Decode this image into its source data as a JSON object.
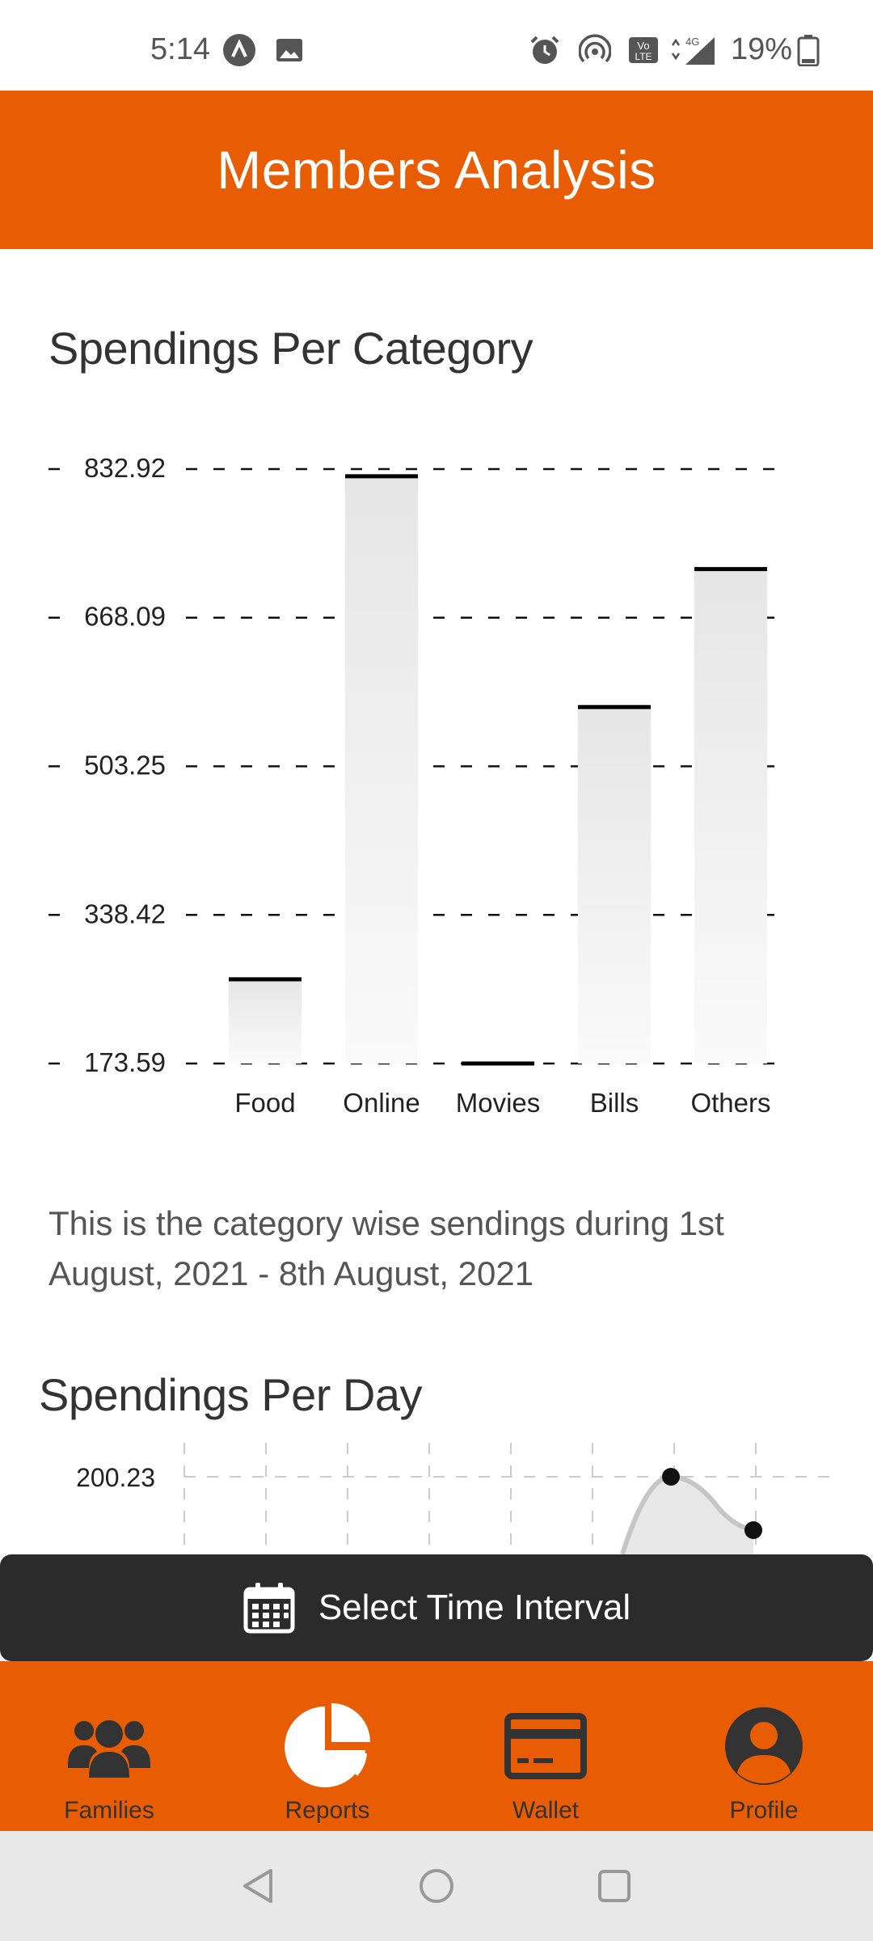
{
  "status_bar": {
    "time": "5:14",
    "battery": "19%",
    "icons": [
      "app-a-icon",
      "image-icon",
      "alarm-icon",
      "hotspot-icon",
      "volte-icon",
      "signal-4g-icon",
      "battery-icon"
    ]
  },
  "header": {
    "title": "Members Analysis"
  },
  "category_section": {
    "title": "Spendings Per Category",
    "caption": "This is the category wise sendings during 1st August, 2021 - 8th August, 2021"
  },
  "chart_data": [
    {
      "type": "bar",
      "title": "",
      "categories": [
        "Food",
        "Online",
        "Movies",
        "Bills",
        "Others"
      ],
      "values": [
        267,
        825,
        173.59,
        569,
        722
      ],
      "yticks": [
        "832.92",
        "668.09",
        "503.25",
        "338.42",
        "173.59"
      ],
      "ylim": [
        173.59,
        832.92
      ],
      "grid": true,
      "bar_color": "#e6e6e6",
      "bar_cap_color": "#000000"
    },
    {
      "type": "area",
      "title": "",
      "yticks": [
        "200.23"
      ],
      "points": [
        {
          "x": 5,
          "y": 200.23
        },
        {
          "x": 6,
          "y": 170
        }
      ],
      "grid": true
    }
  ],
  "day_section": {
    "title": "Spendings Per Day"
  },
  "snackbar": {
    "label": "Select Time Interval",
    "icon": "calendar-icon"
  },
  "bottom_nav": {
    "items": [
      {
        "label": "Families",
        "icon": "families-icon"
      },
      {
        "label": "Reports",
        "icon": "pie-chart-icon"
      },
      {
        "label": "Wallet",
        "icon": "wallet-icon"
      },
      {
        "label": "Profile",
        "icon": "profile-icon"
      }
    ]
  },
  "colors": {
    "accent": "#e85d04",
    "snackbar": "#2b2b2b",
    "nav_icon": "#333333"
  }
}
